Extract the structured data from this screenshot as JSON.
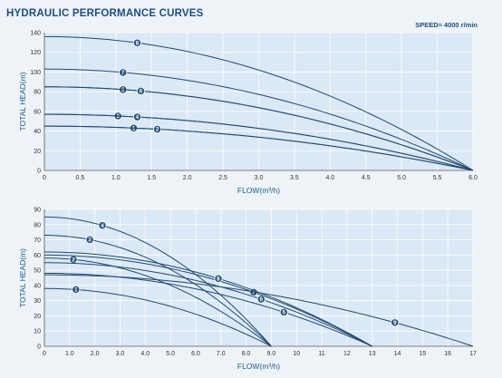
{
  "header": {
    "title": "HYDRAULIC PERFORMANCE CURVES",
    "speed": "SPEED≈ 4000 r/min"
  },
  "colors": {
    "background": "#eef3f8",
    "plot_bg": "#dbe8f5",
    "grid": "#ffffff",
    "curve": "#1f4a70",
    "marker": "#2a557d",
    "title": "#1d4e7c"
  },
  "chart_data": [
    {
      "type": "line",
      "xlabel": "FLOW(m³/h)",
      "ylabel": "TOTAL HEAD(m)",
      "xlim": [
        0,
        6
      ],
      "ylim": [
        0,
        140
      ],
      "xticks": [
        0,
        0.5,
        1,
        1.5,
        2,
        2.5,
        3,
        3.5,
        4,
        4.5,
        5,
        5.5,
        6
      ],
      "xtick_labels": [
        "0",
        "0.5",
        "1.0",
        "1.5",
        "2.0",
        "2.5",
        "3.0",
        "3.5",
        "4.0",
        "4.5",
        "5.0",
        "5.5",
        "6.0"
      ],
      "yticks": [
        0,
        20,
        40,
        60,
        80,
        100,
        120,
        140
      ],
      "grid": true,
      "series": [
        {
          "name": "1",
          "shutoff": 45,
          "max_flow": 6.0,
          "marker_x": 1.25
        },
        {
          "name": "2",
          "shutoff": 45,
          "max_flow": 6.0,
          "marker_x": 1.58
        },
        {
          "name": "3",
          "shutoff": 57,
          "max_flow": 6.0,
          "marker_x": 1.03
        },
        {
          "name": "4",
          "shutoff": 57,
          "max_flow": 6.0,
          "marker_x": 1.3
        },
        {
          "name": "5",
          "shutoff": 85,
          "max_flow": 6.0,
          "marker_x": 1.1
        },
        {
          "name": "6",
          "shutoff": 85,
          "max_flow": 6.0,
          "marker_x": 1.35
        },
        {
          "name": "7",
          "shutoff": 103,
          "max_flow": 6.0,
          "marker_x": 1.1
        },
        {
          "name": "8",
          "shutoff": 136,
          "max_flow": 6.0,
          "marker_x": 1.3
        }
      ]
    },
    {
      "type": "line",
      "xlabel": "FLOW(m³/h)",
      "ylabel": "TOTAL HEAD(m)",
      "xlim": [
        0,
        17
      ],
      "ylim": [
        0,
        90
      ],
      "xticks": [
        0,
        1,
        2,
        3,
        4,
        5,
        6,
        7,
        8,
        9,
        10,
        11,
        12,
        13,
        14,
        15,
        16,
        17
      ],
      "xtick_labels": [
        "0",
        "1.0",
        "2.0",
        "3.0",
        "4.0",
        "5.0",
        "6.0",
        "7.0",
        "8.0",
        "9.0",
        "10",
        "11",
        "12",
        "13",
        "14",
        "15",
        "16",
        "17"
      ],
      "yticks": [
        0,
        10,
        20,
        30,
        40,
        50,
        60,
        70,
        80,
        90
      ],
      "grid": true,
      "series": [
        {
          "name": "1",
          "shutoff": 38,
          "max_flow": 9.0,
          "marker_x": 1.25
        },
        {
          "name": "2",
          "shutoff": 58,
          "max_flow": 9.0,
          "marker_x": 1.15
        },
        {
          "name": "3",
          "shutoff": 73,
          "max_flow": 9.0,
          "marker_x": 1.8
        },
        {
          "name": "4",
          "shutoff": 85,
          "max_flow": 9.0,
          "marker_x": 2.3
        },
        {
          "name": "5",
          "shutoff": 48,
          "max_flow": 13.0,
          "marker_x": 9.5
        },
        {
          "name": "6",
          "shutoff": 55,
          "max_flow": 13.0,
          "marker_x": 8.6
        },
        {
          "name": "7",
          "shutoff": 60,
          "max_flow": 13.0,
          "marker_x": 8.3
        },
        {
          "name": "8",
          "shutoff": 62,
          "max_flow": 13.0,
          "marker_x": 6.9
        },
        {
          "name": "9",
          "shutoff": 47,
          "max_flow": 17.0,
          "marker_x": 13.9
        }
      ]
    }
  ]
}
